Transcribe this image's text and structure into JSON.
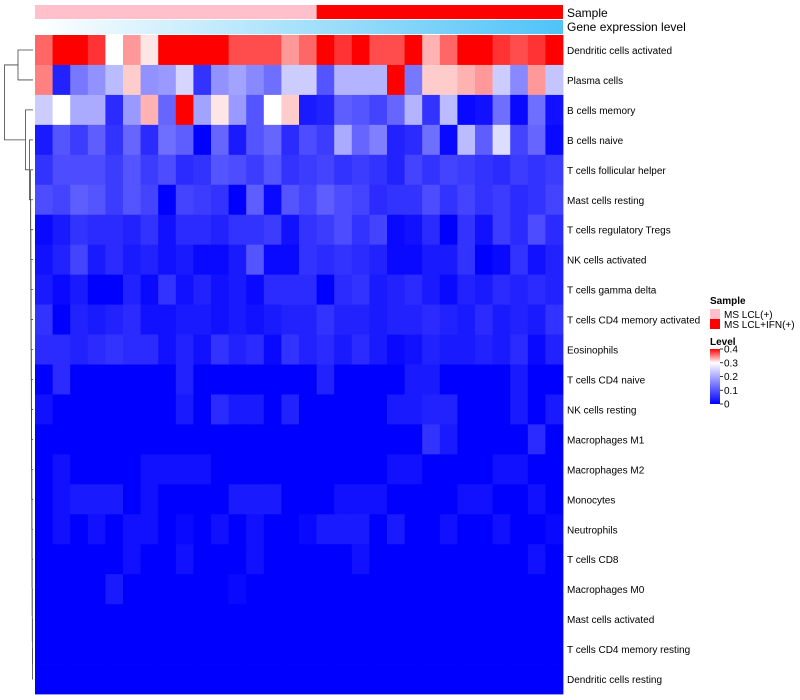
{
  "chart_data": {
    "type": "heatmap",
    "annotation_tracks": [
      {
        "name": "Sample",
        "colors": [
          "#FFC0CB",
          "#FF0000"
        ],
        "split": 16
      },
      {
        "name": "Gene expression level",
        "gradient": [
          "#FFFFFF",
          "#4FC3F7"
        ]
      }
    ],
    "n_columns": 30,
    "rows": [
      "Dendritic cells activated",
      "Plasma cells",
      "B cells memory",
      "B cells naive",
      "T cells follicular helper",
      "Mast cells resting",
      "T cells regulatory  Tregs",
      "NK cells activated",
      "T cells gamma delta",
      "T cells CD4 memory activated",
      "Eosinophils",
      "T cells CD4 naive",
      "NK cells resting",
      "Macrophages M1",
      "Macrophages M2",
      "Monocytes",
      "Neutrophils",
      "T cells CD8",
      "Macrophages M0",
      "Mast cells activated",
      "T cells CD4 memory resting",
      "Dendritic cells resting"
    ],
    "values": [
      [
        0.36,
        0.4,
        0.4,
        0.38,
        0.3,
        0.34,
        0.31,
        0.4,
        0.4,
        0.4,
        0.4,
        0.37,
        0.37,
        0.37,
        0.34,
        0.36,
        0.4,
        0.38,
        0.4,
        0.37,
        0.37,
        0.4,
        0.33,
        0.36,
        0.4,
        0.4,
        0.38,
        0.37,
        0.38,
        0.4
      ],
      [
        0.35,
        0.04,
        0.14,
        0.17,
        0.22,
        0.32,
        0.17,
        0.18,
        0.25,
        0.06,
        0.17,
        0.19,
        0.16,
        0.13,
        0.24,
        0.24,
        0.1,
        0.21,
        0.21,
        0.21,
        0.4,
        0.14,
        0.32,
        0.32,
        0.33,
        0.34,
        0.24,
        0.16,
        0.34,
        0.23
      ],
      [
        0.24,
        0.3,
        0.2,
        0.2,
        0.05,
        0.18,
        0.33,
        0.12,
        0.4,
        0.19,
        0.31,
        0.18,
        0.1,
        0.3,
        0.32,
        0.03,
        0.04,
        0.11,
        0.1,
        0.08,
        0.12,
        0.21,
        0.06,
        0.22,
        0.01,
        0.02,
        0.13,
        0.01,
        0.13,
        0.02
      ],
      [
        0.03,
        0.1,
        0.07,
        0.11,
        0.06,
        0.12,
        0.05,
        0.13,
        0.11,
        0.0,
        0.12,
        0.03,
        0.1,
        0.12,
        0.05,
        0.09,
        0.07,
        0.2,
        0.12,
        0.15,
        0.04,
        0.05,
        0.13,
        0.01,
        0.22,
        0.11,
        0.26,
        0.08,
        0.12,
        0.01
      ],
      [
        0.06,
        0.09,
        0.09,
        0.09,
        0.07,
        0.1,
        0.07,
        0.09,
        0.05,
        0.06,
        0.1,
        0.09,
        0.07,
        0.1,
        0.06,
        0.07,
        0.08,
        0.06,
        0.07,
        0.06,
        0.04,
        0.08,
        0.06,
        0.08,
        0.07,
        0.06,
        0.05,
        0.07,
        0.06,
        0.07
      ],
      [
        0.09,
        0.08,
        0.11,
        0.1,
        0.07,
        0.1,
        0.08,
        0.0,
        0.08,
        0.07,
        0.06,
        0.0,
        0.11,
        0.01,
        0.1,
        0.08,
        0.11,
        0.09,
        0.08,
        0.05,
        0.06,
        0.06,
        0.09,
        0.06,
        0.08,
        0.06,
        0.07,
        0.05,
        0.06,
        0.08
      ],
      [
        0.01,
        0.03,
        0.06,
        0.05,
        0.05,
        0.04,
        0.06,
        0.02,
        0.05,
        0.05,
        0.04,
        0.06,
        0.06,
        0.07,
        0.02,
        0.06,
        0.07,
        0.09,
        0.06,
        0.08,
        0.01,
        0.02,
        0.05,
        0.0,
        0.06,
        0.02,
        0.07,
        0.05,
        0.09,
        0.05
      ],
      [
        0.02,
        0.04,
        0.08,
        0.03,
        0.05,
        0.03,
        0.04,
        0.02,
        0.03,
        0.01,
        0.01,
        0.03,
        0.1,
        0.01,
        0.01,
        0.06,
        0.05,
        0.06,
        0.05,
        0.04,
        0.01,
        0.01,
        0.03,
        0.03,
        0.06,
        0.0,
        0.01,
        0.06,
        0.02,
        0.04
      ],
      [
        0.03,
        0.01,
        0.03,
        0.0,
        0.0,
        0.04,
        0.01,
        0.06,
        0.02,
        0.04,
        0.02,
        0.03,
        0.01,
        0.05,
        0.05,
        0.05,
        0.0,
        0.05,
        0.06,
        0.03,
        0.04,
        0.05,
        0.03,
        0.01,
        0.04,
        0.03,
        0.05,
        0.04,
        0.05,
        0.04
      ],
      [
        0.06,
        0.0,
        0.04,
        0.03,
        0.04,
        0.05,
        0.02,
        0.02,
        0.03,
        0.03,
        0.02,
        0.03,
        0.02,
        0.03,
        0.04,
        0.04,
        0.06,
        0.04,
        0.04,
        0.03,
        0.04,
        0.04,
        0.05,
        0.04,
        0.03,
        0.05,
        0.03,
        0.04,
        0.03,
        0.06
      ],
      [
        0.05,
        0.05,
        0.04,
        0.05,
        0.06,
        0.05,
        0.05,
        0.02,
        0.04,
        0.02,
        0.06,
        0.04,
        0.05,
        0.01,
        0.06,
        0.04,
        0.05,
        0.03,
        0.05,
        0.03,
        0.01,
        0.02,
        0.04,
        0.03,
        0.03,
        0.04,
        0.03,
        0.05,
        0.01,
        0.04
      ],
      [
        0.0,
        0.05,
        0.0,
        0.0,
        0.0,
        0.0,
        0.0,
        0.0,
        0.04,
        0.0,
        0.0,
        0.0,
        0.0,
        0.0,
        0.0,
        0.0,
        0.04,
        0.0,
        0.0,
        0.0,
        0.0,
        0.03,
        0.03,
        0.0,
        0.0,
        0.0,
        0.0,
        0.03,
        0.0,
        0.0
      ],
      [
        0.02,
        0.0,
        0.0,
        0.0,
        0.0,
        0.0,
        0.0,
        0.0,
        0.03,
        0.0,
        0.05,
        0.03,
        0.03,
        0.0,
        0.04,
        0.0,
        0.0,
        0.0,
        0.0,
        0.0,
        0.03,
        0.03,
        0.04,
        0.04,
        0.0,
        0.0,
        0.0,
        0.03,
        0.0,
        0.03
      ],
      [
        0.0,
        0.0,
        0.0,
        0.0,
        0.0,
        0.0,
        0.0,
        0.0,
        0.0,
        0.0,
        0.0,
        0.0,
        0.0,
        0.0,
        0.0,
        0.0,
        0.0,
        0.0,
        0.0,
        0.0,
        0.0,
        0.0,
        0.06,
        0.03,
        0.0,
        0.0,
        0.0,
        0.0,
        0.05,
        0.0
      ],
      [
        0.0,
        0.02,
        0.0,
        0.0,
        0.0,
        0.0,
        0.02,
        0.02,
        0.02,
        0.02,
        0.0,
        0.0,
        0.0,
        0.0,
        0.0,
        0.0,
        0.0,
        0.0,
        0.0,
        0.0,
        0.02,
        0.02,
        0.0,
        0.0,
        0.0,
        0.0,
        0.02,
        0.02,
        0.0,
        0.0
      ],
      [
        0.0,
        0.02,
        0.03,
        0.03,
        0.03,
        0.0,
        0.02,
        0.0,
        0.0,
        0.0,
        0.0,
        0.03,
        0.03,
        0.03,
        0.0,
        0.0,
        0.0,
        0.02,
        0.02,
        0.02,
        0.0,
        0.0,
        0.0,
        0.0,
        0.02,
        0.02,
        0.0,
        0.0,
        0.02,
        0.0
      ],
      [
        0.0,
        0.02,
        0.0,
        0.02,
        0.0,
        0.02,
        0.02,
        0.0,
        0.01,
        0.0,
        0.02,
        0.0,
        0.02,
        0.0,
        0.0,
        0.01,
        0.03,
        0.03,
        0.03,
        0.0,
        0.03,
        0.0,
        0.0,
        0.02,
        0.0,
        0.0,
        0.02,
        0.0,
        0.0,
        0.01
      ],
      [
        0.0,
        0.0,
        0.0,
        0.0,
        0.0,
        0.02,
        0.0,
        0.0,
        0.02,
        0.0,
        0.0,
        0.0,
        0.02,
        0.0,
        0.0,
        0.0,
        0.0,
        0.0,
        0.02,
        0.0,
        0.0,
        0.0,
        0.0,
        0.0,
        0.0,
        0.0,
        0.0,
        0.0,
        0.02,
        0.0
      ],
      [
        0.0,
        0.0,
        0.0,
        0.0,
        0.03,
        0.0,
        0.0,
        0.0,
        0.0,
        0.0,
        0.0,
        0.01,
        0.0,
        0.0,
        0.0,
        0.0,
        0.0,
        0.0,
        0.0,
        0.0,
        0.0,
        0.0,
        0.0,
        0.0,
        0.0,
        0.0,
        0.0,
        0.0,
        0.0,
        0.0
      ],
      [
        0.0,
        0.0,
        0.0,
        0.0,
        0.0,
        0.0,
        0.0,
        0.0,
        0.0,
        0.0,
        0.0,
        0.0,
        0.0,
        0.0,
        0.0,
        0.0,
        0.0,
        0.0,
        0.0,
        0.0,
        0.0,
        0.0,
        0.0,
        0.0,
        0.0,
        0.0,
        0.0,
        0.0,
        0.0,
        0.0
      ],
      [
        0.0,
        0.0,
        0.0,
        0.0,
        0.0,
        0.0,
        0.0,
        0.0,
        0.0,
        0.0,
        0.0,
        0.0,
        0.0,
        0.0,
        0.0,
        0.0,
        0.0,
        0.0,
        0.0,
        0.0,
        0.0,
        0.0,
        0.0,
        0.0,
        0.0,
        0.0,
        0.0,
        0.0,
        0.0,
        0.0
      ],
      [
        0.0,
        0.0,
        0.0,
        0.0,
        0.0,
        0.0,
        0.0,
        0.0,
        0.0,
        0.0,
        0.0,
        0.0,
        0.0,
        0.0,
        0.0,
        0.0,
        0.0,
        0.0,
        0.0,
        0.0,
        0.0,
        0.0,
        0.0,
        0.0,
        0.0,
        0.0,
        0.0,
        0.0,
        0.0,
        0.0
      ]
    ],
    "color_scale": {
      "min": 0,
      "mid": 0.3,
      "max": 0.4,
      "low": "#0000FF",
      "mid_color": "#FFFFFF",
      "high": "#FF0000"
    },
    "legend": {
      "sample_title": "Sample",
      "sample_items": [
        {
          "label": "MS LCL(+)",
          "color": "#FFC0CB"
        },
        {
          "label": "MS LCL+IFN(+)",
          "color": "#FF0000"
        }
      ],
      "level_title": "Level",
      "level_ticks": [
        {
          "value": 0.4,
          "label": "0.4"
        },
        {
          "value": 0.3,
          "label": "0.3"
        },
        {
          "value": 0.2,
          "label": "0.2"
        },
        {
          "value": 0.1,
          "label": "0.1"
        },
        {
          "value": 0.0,
          "label": "0"
        }
      ]
    },
    "row_dendrogram": true
  }
}
